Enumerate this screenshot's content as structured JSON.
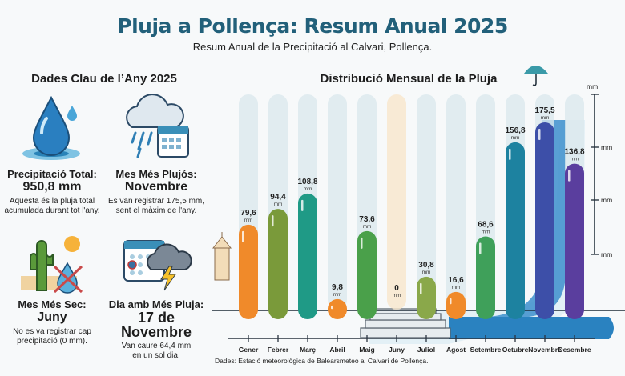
{
  "header": {
    "title": "Pluja a Pollença: Resum Anual 2025",
    "subtitle": "Resum Anual de la Precipitació al Calvari, Pollença."
  },
  "key_facts": {
    "title": "Dades Clau de l’Any 2025",
    "cards": [
      {
        "icon": "water-drop-icon",
        "label": "Precipitació Total:",
        "value": "950,8 mm",
        "desc1": "Aquesta és la pluja total",
        "desc2": "acumulada durant tot l'any."
      },
      {
        "icon": "rain-calendar-icon",
        "label": "Mes Més Plujós:",
        "value": "Novembre",
        "desc1": "Es van registrar 175,5 mm,",
        "desc2": "sent el màxim de l'any."
      },
      {
        "icon": "cactus-sun-icon",
        "label": "Mes Més Sec:",
        "value": "Juny",
        "desc1": "No es va registrar cap",
        "desc2": "precipitació (0 mm)."
      },
      {
        "icon": "storm-calendar-icon",
        "label": "Dia amb Més Pluja:",
        "value": "17 de Novembre",
        "desc1": "Van caure 64,4 mm",
        "desc2": "en un sol dia."
      }
    ]
  },
  "chart_data": {
    "type": "bar",
    "title": "Distribució Mensual de la Pluja",
    "categories": [
      "Gener",
      "Febrer",
      "Març",
      "Abril",
      "Maig",
      "Juny",
      "Juliol",
      "Agost",
      "Setembre",
      "Octubre",
      "Novembre",
      "Desembre"
    ],
    "values": [
      79.6,
      94.4,
      108.8,
      9.8,
      73.6,
      0,
      30.8,
      16.6,
      68.6,
      156.8,
      175.5,
      136.8
    ],
    "value_labels": [
      "79,6",
      "94,4",
      "108,8",
      "9,8",
      "73,6",
      "0",
      "30,8",
      "16,6",
      "68,6",
      "156,8",
      "175,5",
      "136,8"
    ],
    "unit": "mm",
    "axis_tick_labels": [
      "mm",
      "mm",
      "mm",
      "mm"
    ],
    "ylim": [
      0,
      200
    ],
    "colors": [
      "#f08a2a",
      "#7a9a3a",
      "#1f9a86",
      "#f08a2a",
      "#4aa04a",
      "#f5d9b0",
      "#8aa84a",
      "#f08a2a",
      "#3fa05a",
      "#1d82a0",
      "#3d4fa8",
      "#5a3e9e"
    ],
    "track_color": "#dbe9ee"
  },
  "source": "Dades: Estació meteorològica de Balearsmeteo al Calvari de Pollença."
}
